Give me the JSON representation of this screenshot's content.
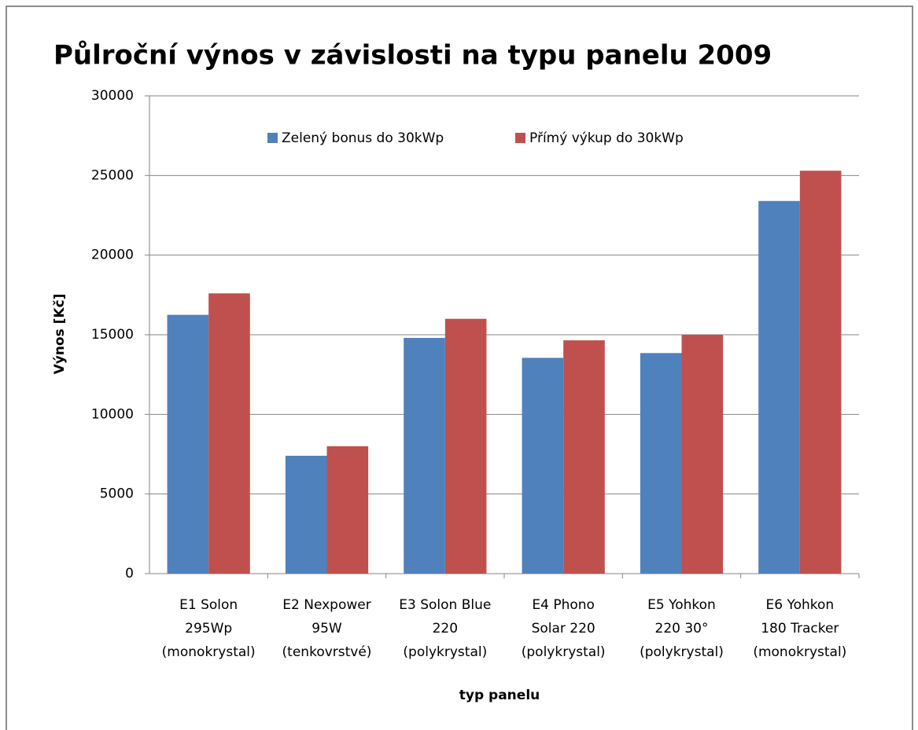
{
  "chart_data": {
    "type": "bar",
    "title": "Půlroční výnos v závislosti na typu panelu 2009",
    "y_label": "Výnos [Kč]",
    "x_label": "typ panelu",
    "categories": [
      [
        "E1 Solon",
        "295Wp",
        "(monokrystal)"
      ],
      [
        "E2 Nexpower",
        "95W",
        "(tenkovrstvé)"
      ],
      [
        "E3 Solon Blue",
        "220",
        "(polykrystal)"
      ],
      [
        "E4 Phono",
        "Solar 220",
        "(polykrystal)"
      ],
      [
        "E5 Yohkon",
        "220 30°",
        "(polykrystal)"
      ],
      [
        "E6 Yohkon",
        "180 Tracker",
        "(monokrystal)"
      ]
    ],
    "series": [
      {
        "name": "Zelený bonus do 30kWp",
        "color": "#4f81bd",
        "values": [
          16250,
          7400,
          14800,
          13550,
          13850,
          23400
        ]
      },
      {
        "name": "Přímý výkup do 30kWp",
        "color": "#c0504d",
        "values": [
          17600,
          8000,
          16000,
          14650,
          15000,
          25300
        ]
      }
    ],
    "ylim": [
      0,
      30000
    ],
    "yticks": [
      0,
      5000,
      10000,
      15000,
      20000,
      25000,
      30000
    ],
    "grid": true,
    "legend": "top"
  }
}
